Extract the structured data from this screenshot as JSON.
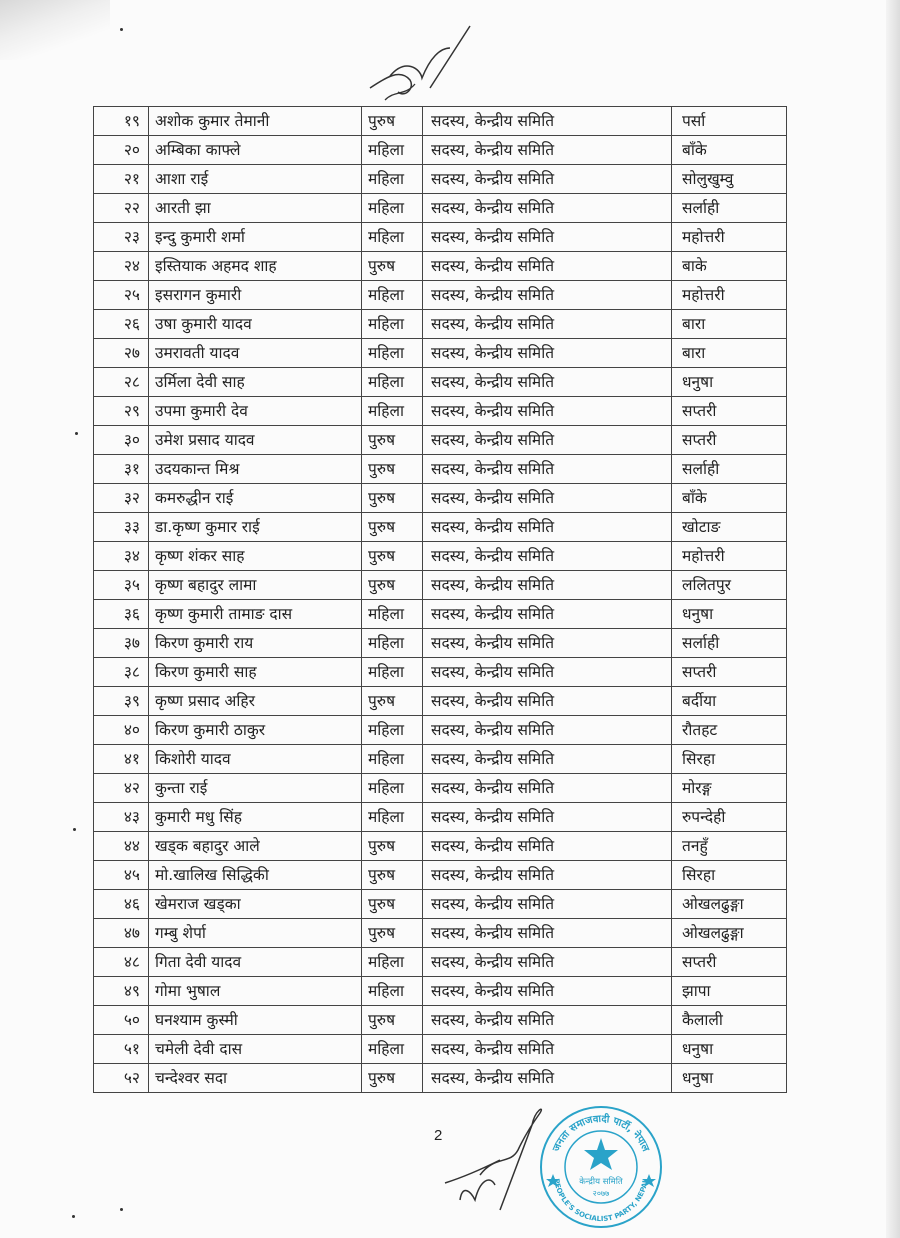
{
  "table": {
    "rows": [
      {
        "num": "१९",
        "name": "अशोक कुमार तेमानी",
        "gender": "पुरुष",
        "role": "सदस्य, केन्द्रीय समिति",
        "district": "पर्सा"
      },
      {
        "num": "२०",
        "name": "अम्बिका काफ्ले",
        "gender": "महिला",
        "role": "सदस्य, केन्द्रीय समिति",
        "district": "बाँके"
      },
      {
        "num": "२१",
        "name": "आशा राई",
        "gender": "महिला",
        "role": "सदस्य, केन्द्रीय समिति",
        "district": "सोलुखुम्वु"
      },
      {
        "num": "२२",
        "name": "आरती झा",
        "gender": "महिला",
        "role": "सदस्य, केन्द्रीय समिति",
        "district": "सर्लाही"
      },
      {
        "num": "२३",
        "name": "इन्दु कुमारी शर्मा",
        "gender": "महिला",
        "role": "सदस्य, केन्द्रीय समिति",
        "district": "महोत्तरी"
      },
      {
        "num": "२४",
        "name": "इस्तियाक अहमद शाह",
        "gender": "पुरुष",
        "role": "सदस्य, केन्द्रीय समिति",
        "district": "बाके"
      },
      {
        "num": "२५",
        "name": "इसरागन कुमारी",
        "gender": "महिला",
        "role": "सदस्य, केन्द्रीय समिति",
        "district": "महोत्तरी"
      },
      {
        "num": "२६",
        "name": "उषा कुमारी यादव",
        "gender": "महिला",
        "role": "सदस्य, केन्द्रीय समिति",
        "district": "बारा"
      },
      {
        "num": "२७",
        "name": "उमरावती यादव",
        "gender": "महिला",
        "role": "सदस्य, केन्द्रीय समिति",
        "district": "बारा"
      },
      {
        "num": "२८",
        "name": "उर्मिला देवी साह",
        "gender": "महिला",
        "role": "सदस्य, केन्द्रीय समिति",
        "district": "धनुषा"
      },
      {
        "num": "२९",
        "name": "उपमा कुमारी देव",
        "gender": "महिला",
        "role": "सदस्य, केन्द्रीय समिति",
        "district": "सप्तरी"
      },
      {
        "num": "३०",
        "name": "उमेश प्रसाद यादव",
        "gender": "पुरुष",
        "role": "सदस्य, केन्द्रीय समिति",
        "district": "सप्तरी"
      },
      {
        "num": "३१",
        "name": "उदयकान्त मिश्र",
        "gender": "पुरुष",
        "role": "सदस्य, केन्द्रीय समिति",
        "district": "सर्लाही"
      },
      {
        "num": "३२",
        "name": "कमरुद्धीन राई",
        "gender": "पुरुष",
        "role": "सदस्य, केन्द्रीय समिति",
        "district": "बाँके"
      },
      {
        "num": "३३",
        "name": "डा.कृष्ण कुमार राई",
        "gender": "पुरुष",
        "role": "सदस्य, केन्द्रीय समिति",
        "district": "खोटाङ"
      },
      {
        "num": "३४",
        "name": "कृष्ण शंकर साह",
        "gender": "पुरुष",
        "role": "सदस्य, केन्द्रीय समिति",
        "district": "महोत्तरी"
      },
      {
        "num": "३५",
        "name": "कृष्ण बहादुर लामा",
        "gender": "पुरुष",
        "role": "सदस्य, केन्द्रीय समिति",
        "district": "ललितपुर"
      },
      {
        "num": "३६",
        "name": "कृष्ण कुमारी तामाङ दास",
        "gender": "महिला",
        "role": "सदस्य, केन्द्रीय समिति",
        "district": "धनुषा"
      },
      {
        "num": "३७",
        "name": "किरण कुमारी राय",
        "gender": "महिला",
        "role": "सदस्य, केन्द्रीय समिति",
        "district": "सर्लाही"
      },
      {
        "num": "३८",
        "name": "किरण कुमारी साह",
        "gender": "महिला",
        "role": "सदस्य, केन्द्रीय समिति",
        "district": "सप्तरी"
      },
      {
        "num": "३९",
        "name": "कृष्ण प्रसाद अहिर",
        "gender": "पुरुष",
        "role": "सदस्य, केन्द्रीय समिति",
        "district": "बर्दीया"
      },
      {
        "num": "४०",
        "name": "किरण कुमारी ठाकुर",
        "gender": "महिला",
        "role": "सदस्य, केन्द्रीय समिति",
        "district": "रौतहट"
      },
      {
        "num": "४१",
        "name": "किशोरी यादव",
        "gender": "महिला",
        "role": "सदस्य, केन्द्रीय समिति",
        "district": "सिरहा"
      },
      {
        "num": "४२",
        "name": "कुन्ता राई",
        "gender": "महिला",
        "role": "सदस्य, केन्द्रीय समिति",
        "district": "मोरङ्ग"
      },
      {
        "num": "४३",
        "name": "कुमारी मधु सिंह",
        "gender": "महिला",
        "role": "सदस्य, केन्द्रीय समिति",
        "district": "रुपन्देही"
      },
      {
        "num": "४४",
        "name": "खड्क बहादुर आले",
        "gender": "पुरुष",
        "role": "सदस्य, केन्द्रीय समिति",
        "district": "तनहुँ"
      },
      {
        "num": "४५",
        "name": "मो.खालिख सिद्धिकी",
        "gender": "पुरुष",
        "role": "सदस्य, केन्द्रीय समिति",
        "district": "सिरहा"
      },
      {
        "num": "४६",
        "name": "खेमराज खड्का",
        "gender": "पुरुष",
        "role": "सदस्य, केन्द्रीय समिति",
        "district": "ओखलढुङ्गा"
      },
      {
        "num": "४७",
        "name": "गम्बु शेर्पा",
        "gender": "पुरुष",
        "role": "सदस्य, केन्द्रीय समिति",
        "district": "ओखलढुङ्गा"
      },
      {
        "num": "४८",
        "name": "गिता देवी यादव",
        "gender": "महिला",
        "role": "सदस्य, केन्द्रीय समिति",
        "district": "सप्तरी"
      },
      {
        "num": "४९",
        "name": "गोमा भुषाल",
        "gender": "महिला",
        "role": "सदस्य, केन्द्रीय समिति",
        "district": "झापा"
      },
      {
        "num": "५०",
        "name": "घनश्याम कुस्मी",
        "gender": "पुरुष",
        "role": "सदस्य, केन्द्रीय समिति",
        "district": "कैलाली"
      },
      {
        "num": "५१",
        "name": "चमेली देवी दास",
        "gender": "महिला",
        "role": "सदस्य, केन्द्रीय समिति",
        "district": "धनुषा"
      },
      {
        "num": "५२",
        "name": "चन्देश्वर सदा",
        "gender": "पुरुष",
        "role": "सदस्य, केन्द्रीय समिति",
        "district": "धनुषा"
      }
    ]
  },
  "page_number": "2",
  "stamp": {
    "top_text": "जनता समाजवादी पार्टी, नेपाल",
    "center_text": "केन्द्रीय समिति",
    "year": "२०७७",
    "bottom_text": "PEOPLE'S SOCIALIST PARTY, NEPAL",
    "color": "#2aa3c9"
  }
}
